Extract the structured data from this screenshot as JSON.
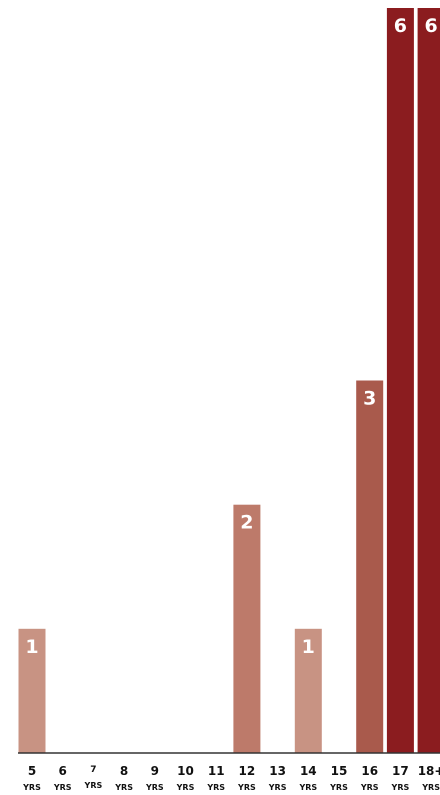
{
  "chart_data": {
    "type": "bar",
    "categories": [
      "5",
      "6",
      "7",
      "8",
      "9",
      "10",
      "11",
      "12",
      "13",
      "14",
      "15",
      "16",
      "17",
      "18+"
    ],
    "category_unit": "YRS",
    "values": [
      1,
      0,
      0,
      0,
      0,
      0,
      0,
      2,
      0,
      1,
      0,
      3,
      6,
      6
    ],
    "title": "",
    "xlabel": "",
    "ylabel": "",
    "ylim": [
      0,
      6
    ],
    "grid": false,
    "legend": "none",
    "colors": {
      "1": "#c89383",
      "2": "#bd7a6a",
      "3": "#a95a4c",
      "6": "#8b1c1f",
      "axis": "#333333"
    }
  }
}
